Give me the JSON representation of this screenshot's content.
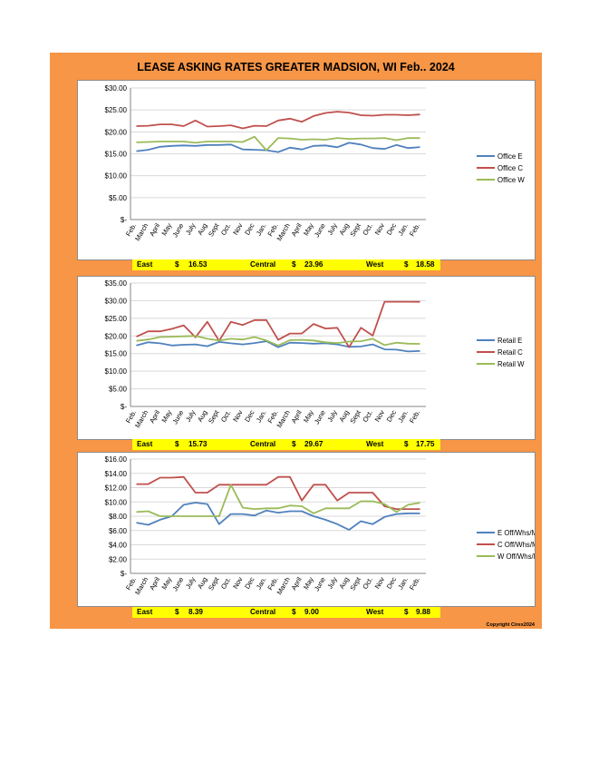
{
  "title": "LEASE ASKING RATES GREATER MADSION, WI  Feb.. 2024",
  "copyright": "Copyright Cirex2024",
  "summary_labels": {
    "east": "East",
    "central": "Central",
    "west": "West"
  },
  "summaries": [
    {
      "east_cur": "$",
      "east_val": "16.53",
      "central_cur": "$",
      "central_val": "23.96",
      "west_cur": "$",
      "west_val": "18.58"
    },
    {
      "east_cur": "$",
      "east_val": "15.73",
      "central_cur": "$",
      "central_val": "29.67",
      "west_cur": "$",
      "west_val": "17.75"
    },
    {
      "east_cur": "$",
      "east_val": "8.39",
      "central_cur": "$",
      "central_val": "9.00",
      "west_cur": "$",
      "west_val": "9.88"
    }
  ],
  "chart_data": [
    {
      "type": "line",
      "categories": [
        "Feb.",
        "March",
        "April",
        "May",
        "June",
        "July",
        "Aug",
        "Sept",
        "Oct.",
        "Nov",
        "Dec",
        "Jan.",
        "Feb.",
        "March",
        "April",
        "May",
        "June",
        "July",
        "Aug",
        "Sept",
        "Oct.",
        "Nov",
        "Dec",
        "Jan.",
        "Feb."
      ],
      "yticks": [
        0,
        5,
        10,
        15,
        20,
        25,
        30
      ],
      "ytick_labels": [
        "$-",
        "$5.00",
        "$10.00",
        "$15.00",
        "$20.00",
        "$25.00",
        "$30.00"
      ],
      "ylim": [
        0,
        30
      ],
      "legend": "right",
      "series": [
        {
          "name": "Office E",
          "color": "#4f81bd",
          "values": [
            15.6,
            15.9,
            16.6,
            16.8,
            16.9,
            16.8,
            17.0,
            17.0,
            17.1,
            16.0,
            15.9,
            15.8,
            15.4,
            16.4,
            16.0,
            16.8,
            16.9,
            16.5,
            17.5,
            17.1,
            16.3,
            16.1,
            17.0,
            16.3,
            16.53
          ]
        },
        {
          "name": "Office C",
          "color": "#c0504d",
          "values": [
            21.3,
            21.4,
            21.7,
            21.7,
            21.3,
            22.6,
            21.2,
            21.3,
            21.5,
            20.8,
            21.4,
            21.3,
            22.6,
            23.0,
            22.3,
            23.6,
            24.3,
            24.6,
            24.4,
            23.8,
            23.7,
            23.9,
            23.9,
            23.8,
            23.96
          ]
        },
        {
          "name": "Office W",
          "color": "#9bbb59",
          "values": [
            17.6,
            17.7,
            17.8,
            17.8,
            17.8,
            17.5,
            17.8,
            17.8,
            17.8,
            17.7,
            18.9,
            15.8,
            18.6,
            18.5,
            18.2,
            18.3,
            18.2,
            18.6,
            18.4,
            18.5,
            18.5,
            18.6,
            18.1,
            18.6,
            18.58
          ]
        }
      ]
    },
    {
      "type": "line",
      "categories": [
        "Feb.",
        "March",
        "April",
        "May",
        "June",
        "July",
        "Aug",
        "Sept",
        "Oct.",
        "Nov",
        "Dec",
        "Jan.",
        "Feb.",
        "March",
        "April",
        "May",
        "June",
        "July",
        "Aug",
        "Sept",
        "Oct.",
        "Nov",
        "Dec",
        "Jan.",
        "Feb."
      ],
      "yticks": [
        0,
        5,
        10,
        15,
        20,
        25,
        30,
        35
      ],
      "ytick_labels": [
        "$-",
        "$5.00",
        "$10.00",
        "$15.00",
        "$20.00",
        "$25.00",
        "$30.00",
        "$35.00"
      ],
      "ylim": [
        0,
        35
      ],
      "legend": "right",
      "series": [
        {
          "name": "Retail E",
          "color": "#4f81bd",
          "values": [
            17.3,
            18.2,
            17.9,
            17.3,
            17.5,
            17.6,
            17.1,
            18.3,
            17.9,
            17.6,
            18.0,
            18.5,
            16.8,
            18.1,
            18.0,
            17.8,
            17.9,
            17.6,
            16.9,
            17.0,
            17.6,
            16.2,
            16.1,
            15.6,
            15.73
          ]
        },
        {
          "name": "Retail C",
          "color": "#c0504d",
          "values": [
            19.8,
            21.3,
            21.3,
            22.0,
            23.0,
            19.6,
            24.0,
            18.6,
            24.0,
            23.1,
            24.5,
            24.5,
            18.9,
            20.7,
            20.7,
            23.4,
            22.1,
            22.3,
            16.8,
            22.3,
            20.1,
            29.7,
            29.7,
            29.7,
            29.67
          ]
        },
        {
          "name": "Retail W",
          "color": "#9bbb59",
          "values": [
            18.6,
            19.0,
            19.7,
            19.8,
            19.9,
            20.0,
            19.2,
            18.7,
            19.2,
            19.0,
            19.7,
            18.7,
            17.3,
            18.8,
            18.9,
            18.7,
            18.2,
            18.0,
            18.4,
            18.5,
            19.2,
            17.4,
            18.1,
            17.8,
            17.75
          ]
        }
      ]
    },
    {
      "type": "line",
      "categories": [
        "Feb.",
        "March",
        "April",
        "May",
        "June",
        "July",
        "Aug",
        "Sept",
        "Oct.",
        "Nov",
        "Dec",
        "Jan.",
        "Feb.",
        "March",
        "April",
        "May",
        "June",
        "July",
        "Aug",
        "Sept",
        "Oct.",
        "Nov",
        "Dec",
        "Jan.",
        "Feb."
      ],
      "yticks": [
        0,
        2,
        4,
        6,
        8,
        10,
        12,
        14,
        16
      ],
      "ytick_labels": [
        "$-",
        "$2.00",
        "$4.00",
        "$6.00",
        "$8.00",
        "$10.00",
        "$12.00",
        "$14.00",
        "$16.00"
      ],
      "ylim": [
        0,
        16
      ],
      "legend": "right",
      "series": [
        {
          "name": "E Off/Whs/Mfg/Ind",
          "color": "#4f81bd",
          "values": [
            7.1,
            6.8,
            7.5,
            8.0,
            9.6,
            9.9,
            9.7,
            6.9,
            8.3,
            8.3,
            8.1,
            8.8,
            8.5,
            8.7,
            8.7,
            8.0,
            7.5,
            6.9,
            6.1,
            7.3,
            6.9,
            7.9,
            8.3,
            8.4,
            8.39
          ]
        },
        {
          "name": "C Off/Whs/Mfg/Ind",
          "color": "#c0504d",
          "values": [
            12.5,
            12.5,
            13.4,
            13.4,
            13.5,
            11.3,
            11.3,
            12.4,
            12.4,
            12.4,
            12.4,
            12.4,
            13.5,
            13.5,
            10.2,
            12.4,
            12.4,
            10.2,
            11.3,
            11.3,
            11.3,
            9.4,
            9.0,
            9.0,
            9.0
          ]
        },
        {
          "name": "W Off/Whs/Mfg/Ind",
          "color": "#9bbb59",
          "values": [
            8.6,
            8.7,
            8.0,
            8.0,
            8.0,
            8.0,
            8.0,
            8.0,
            12.4,
            9.2,
            9.0,
            9.1,
            9.1,
            9.5,
            9.4,
            8.4,
            9.1,
            9.1,
            9.1,
            10.1,
            10.1,
            9.7,
            8.6,
            9.6,
            9.88
          ]
        }
      ]
    }
  ]
}
